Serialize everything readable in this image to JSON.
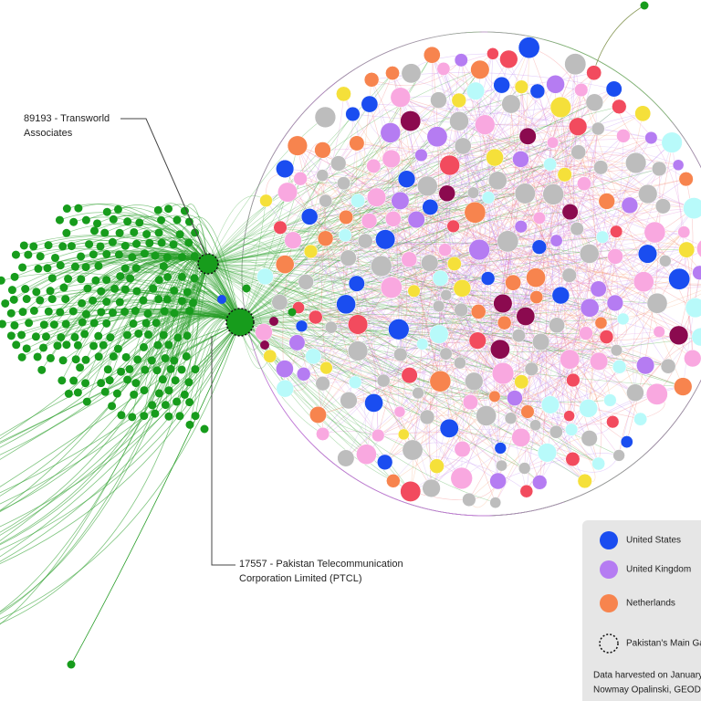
{
  "annotations": [
    {
      "lines": [
        "89193 - Transworld",
        "Associates"
      ]
    },
    {
      "lines": [
        "17557 - Pakistan Telecommunication",
        "Corporation Limited (PTCL)"
      ]
    }
  ],
  "legend": {
    "items": [
      {
        "label": "United States",
        "color": "#1a4df0"
      },
      {
        "label": "United Kingdom",
        "color": "#b57cf2"
      },
      {
        "label": "Netherlands",
        "color": "#f7844e"
      },
      {
        "label": "Pakistan's Main Ga"
      }
    ],
    "footer": [
      "Data harvested on January",
      "Nowmay Opalinski, GEODE"
    ]
  }
}
